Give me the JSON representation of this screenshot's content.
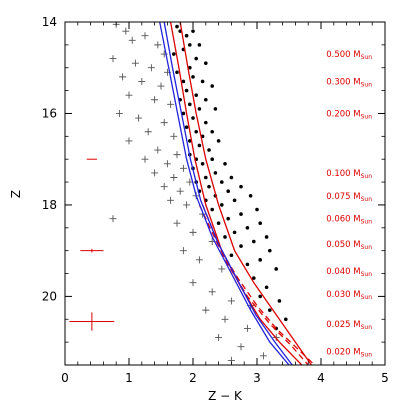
{
  "chart_data": {
    "type": "scatter",
    "title": "",
    "xlabel": "Z − K",
    "ylabel": "Z",
    "xlim": [
      0,
      5
    ],
    "ylim": [
      21.5,
      14
    ],
    "y_inverted": true,
    "grid": false,
    "x_ticks": [
      0,
      1,
      2,
      3,
      4,
      5
    ],
    "y_ticks": [
      14,
      16,
      18,
      20
    ],
    "colors": {
      "axes": "#000000",
      "dots": "#000000",
      "plus": "#555555",
      "red": "#dd0000",
      "blue": "#2222dd"
    },
    "isochrones": [
      {
        "color": "#dd0000",
        "dash": "solid",
        "x": [
          1.65,
          1.78,
          1.9,
          2.03,
          2.2,
          2.45,
          2.75,
          3.05,
          3.35,
          3.7
        ],
        "y": [
          14.0,
          15.0,
          16.0,
          17.0,
          18.0,
          19.0,
          19.8,
          20.5,
          21.0,
          21.5
        ]
      },
      {
        "color": "#dd0000",
        "dash": "solid",
        "x": [
          1.8,
          1.92,
          2.05,
          2.2,
          2.4,
          2.65,
          2.95,
          3.25,
          3.55,
          3.85
        ],
        "y": [
          14.0,
          15.0,
          16.0,
          17.0,
          18.0,
          19.0,
          19.7,
          20.3,
          20.9,
          21.5
        ]
      },
      {
        "color": "#dd0000",
        "dash": "dashed",
        "x": [
          2.1,
          2.4,
          2.7,
          3.0,
          3.3,
          3.6,
          3.9
        ],
        "y": [
          18.0,
          18.9,
          19.6,
          20.2,
          20.7,
          21.1,
          21.5
        ]
      },
      {
        "color": "#dd0000",
        "dash": "dashed",
        "x": [
          2.15,
          2.5,
          2.85,
          3.2,
          3.55,
          3.8
        ],
        "y": [
          18.0,
          19.2,
          20.0,
          20.6,
          21.1,
          21.5
        ]
      },
      {
        "color": "#2222dd",
        "dash": "solid",
        "x": [
          1.48,
          1.62,
          1.76,
          1.9,
          2.05,
          2.3,
          2.6,
          2.9,
          3.2,
          3.5
        ],
        "y": [
          14.0,
          15.0,
          16.0,
          17.0,
          17.8,
          18.7,
          19.5,
          20.3,
          21.0,
          21.5
        ]
      },
      {
        "color": "#2222dd",
        "dash": "solid",
        "x": [
          1.55,
          1.68,
          1.82,
          1.96,
          2.12,
          2.38,
          2.68,
          2.98,
          3.28,
          3.55
        ],
        "y": [
          14.0,
          15.0,
          16.0,
          17.0,
          17.9,
          18.8,
          19.6,
          20.4,
          21.0,
          21.5
        ]
      }
    ],
    "mass_labels": [
      {
        "value": "0.500",
        "unit": "M",
        "sub": "Sun",
        "z": 14.7
      },
      {
        "value": "0.300",
        "unit": "M",
        "sub": "Sun",
        "z": 15.3
      },
      {
        "value": "0.200",
        "unit": "M",
        "sub": "Sun",
        "z": 16.0
      },
      {
        "value": "0.100",
        "unit": "M",
        "sub": "Sun",
        "z": 17.3
      },
      {
        "value": "0.075",
        "unit": "M",
        "sub": "Sun",
        "z": 17.8
      },
      {
        "value": "0.060",
        "unit": "M",
        "sub": "Sun",
        "z": 18.3
      },
      {
        "value": "0.050",
        "unit": "M",
        "sub": "Sun",
        "z": 18.85
      },
      {
        "value": "0.040",
        "unit": "M",
        "sub": "Sun",
        "z": 19.45
      },
      {
        "value": "0.030",
        "unit": "M",
        "sub": "Sun",
        "z": 19.95
      },
      {
        "value": "0.025",
        "unit": "M",
        "sub": "Sun",
        "z": 20.6
      },
      {
        "value": "0.020",
        "unit": "M",
        "sub": "Sun",
        "z": 21.2
      }
    ],
    "error_bars": [
      {
        "x": 0.42,
        "y": 17.0,
        "dx": 0.08,
        "dy": 0.0
      },
      {
        "x": 0.42,
        "y": 19.0,
        "dx": 0.18,
        "dy": 0.04
      },
      {
        "x": 0.42,
        "y": 20.55,
        "dx": 0.35,
        "dy": 0.2
      }
    ],
    "dot_series": {
      "name": "",
      "points": [
        [
          1.75,
          14.1
        ],
        [
          1.8,
          14.2
        ],
        [
          1.9,
          14.3
        ],
        [
          2.0,
          14.2
        ],
        [
          1.95,
          14.5
        ],
        [
          2.1,
          14.5
        ],
        [
          1.85,
          14.6
        ],
        [
          1.7,
          14.7
        ],
        [
          2.05,
          14.8
        ],
        [
          2.2,
          14.9
        ],
        [
          1.95,
          15.0
        ],
        [
          1.75,
          15.1
        ],
        [
          2.0,
          15.2
        ],
        [
          2.15,
          15.3
        ],
        [
          1.85,
          15.3
        ],
        [
          2.3,
          15.4
        ],
        [
          1.9,
          15.5
        ],
        [
          2.05,
          15.6
        ],
        [
          2.2,
          15.7
        ],
        [
          1.8,
          15.7
        ],
        [
          1.95,
          15.8
        ],
        [
          2.1,
          15.9
        ],
        [
          2.35,
          15.9
        ],
        [
          1.85,
          16.0
        ],
        [
          2.0,
          16.1
        ],
        [
          2.2,
          16.2
        ],
        [
          1.9,
          16.3
        ],
        [
          2.05,
          16.4
        ],
        [
          2.3,
          16.4
        ],
        [
          2.15,
          16.5
        ],
        [
          1.95,
          16.6
        ],
        [
          2.4,
          16.6
        ],
        [
          2.1,
          16.7
        ],
        [
          2.25,
          16.8
        ],
        [
          1.95,
          16.9
        ],
        [
          2.05,
          17.0
        ],
        [
          2.3,
          17.0
        ],
        [
          2.15,
          17.1
        ],
        [
          2.5,
          17.1
        ],
        [
          2.0,
          17.2
        ],
        [
          2.35,
          17.3
        ],
        [
          2.2,
          17.4
        ],
        [
          2.6,
          17.4
        ],
        [
          2.05,
          17.5
        ],
        [
          2.45,
          17.5
        ],
        [
          2.25,
          17.6
        ],
        [
          2.75,
          17.6
        ],
        [
          2.1,
          17.7
        ],
        [
          2.55,
          17.7
        ],
        [
          2.35,
          17.8
        ],
        [
          2.9,
          17.8
        ],
        [
          2.2,
          17.9
        ],
        [
          2.65,
          17.9
        ],
        [
          2.45,
          18.0
        ],
        [
          3.0,
          18.1
        ],
        [
          2.3,
          18.1
        ],
        [
          2.75,
          18.2
        ],
        [
          2.55,
          18.3
        ],
        [
          3.05,
          18.4
        ],
        [
          2.4,
          18.4
        ],
        [
          2.85,
          18.5
        ],
        [
          2.65,
          18.6
        ],
        [
          3.15,
          18.7
        ],
        [
          2.5,
          18.7
        ],
        [
          2.95,
          18.8
        ],
        [
          2.75,
          18.9
        ],
        [
          3.2,
          19.0
        ],
        [
          2.6,
          19.1
        ],
        [
          3.05,
          19.2
        ],
        [
          2.85,
          19.3
        ],
        [
          3.3,
          19.4
        ],
        [
          2.95,
          19.6
        ],
        [
          3.15,
          19.8
        ],
        [
          3.05,
          20.0
        ],
        [
          3.35,
          20.1
        ],
        [
          3.2,
          20.3
        ],
        [
          3.45,
          20.5
        ],
        [
          3.3,
          20.7
        ]
      ]
    },
    "plus_series": {
      "name": "",
      "points": [
        [
          0.8,
          14.05
        ],
        [
          0.95,
          14.2
        ],
        [
          1.05,
          14.4
        ],
        [
          1.25,
          14.3
        ],
        [
          1.45,
          14.5
        ],
        [
          1.55,
          14.7
        ],
        [
          0.75,
          14.8
        ],
        [
          1.1,
          14.9
        ],
        [
          1.35,
          15.0
        ],
        [
          1.6,
          15.1
        ],
        [
          0.9,
          15.2
        ],
        [
          1.2,
          15.3
        ],
        [
          1.5,
          15.4
        ],
        [
          1.0,
          15.6
        ],
        [
          1.4,
          15.7
        ],
        [
          1.65,
          15.8
        ],
        [
          0.85,
          16.0
        ],
        [
          1.15,
          16.1
        ],
        [
          1.55,
          16.2
        ],
        [
          1.3,
          16.4
        ],
        [
          1.7,
          16.5
        ],
        [
          1.0,
          16.6
        ],
        [
          1.45,
          16.8
        ],
        [
          1.75,
          16.9
        ],
        [
          1.25,
          17.0
        ],
        [
          1.6,
          17.1
        ],
        [
          1.85,
          17.2
        ],
        [
          1.4,
          17.3
        ],
        [
          1.7,
          17.4
        ],
        [
          1.95,
          17.5
        ],
        [
          1.55,
          17.6
        ],
        [
          1.8,
          17.7
        ],
        [
          2.05,
          17.8
        ],
        [
          1.65,
          17.9
        ],
        [
          1.9,
          18.0
        ],
        [
          2.15,
          18.2
        ],
        [
          0.75,
          18.3
        ],
        [
          1.75,
          18.4
        ],
        [
          2.0,
          18.6
        ],
        [
          2.3,
          18.8
        ],
        [
          1.85,
          19.0
        ],
        [
          2.1,
          19.2
        ],
        [
          2.45,
          19.4
        ],
        [
          2.0,
          19.7
        ],
        [
          2.3,
          19.9
        ],
        [
          2.6,
          20.1
        ],
        [
          2.2,
          20.3
        ],
        [
          2.5,
          20.5
        ],
        [
          2.85,
          20.7
        ],
        [
          2.4,
          20.9
        ],
        [
          2.75,
          21.1
        ],
        [
          3.1,
          21.3
        ],
        [
          2.6,
          21.4
        ],
        [
          3.3,
          20.9
        ],
        [
          2.9,
          20.2
        ]
      ]
    }
  }
}
